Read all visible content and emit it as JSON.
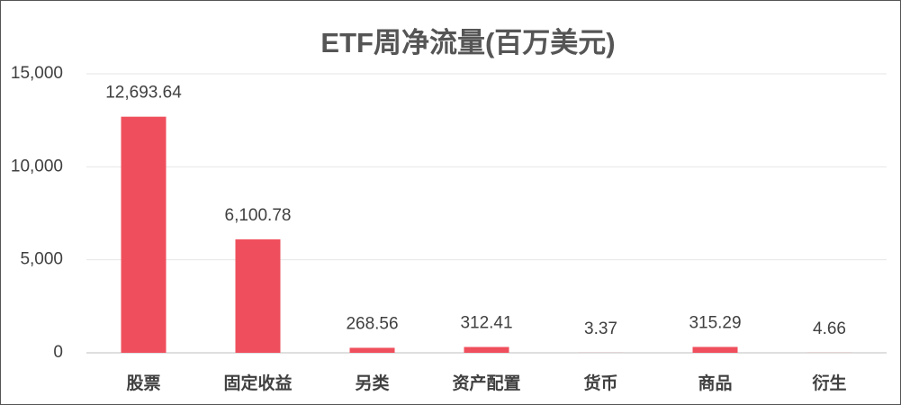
{
  "chart_data": {
    "type": "bar",
    "title": "ETF周净流量(百万美元)",
    "categories": [
      "股票",
      "固定收益",
      "另类",
      "资产配置",
      "货币",
      "商品",
      "衍生"
    ],
    "values": [
      12693.64,
      6100.78,
      268.56,
      312.41,
      3.37,
      315.29,
      4.66
    ],
    "value_labels": [
      "12,693.64",
      "6,100.78",
      "268.56",
      "312.41",
      "3.37",
      "315.29",
      "4.66"
    ],
    "color": "#ef4f5c",
    "ylim": [
      0,
      15000
    ],
    "yticks": [
      0,
      {
        "value": 5000,
        "label": "5,000"
      },
      {
        "value": 10000,
        "label": "10,000"
      },
      {
        "value": 15000,
        "label": "15,000"
      }
    ],
    "grid": true
  }
}
